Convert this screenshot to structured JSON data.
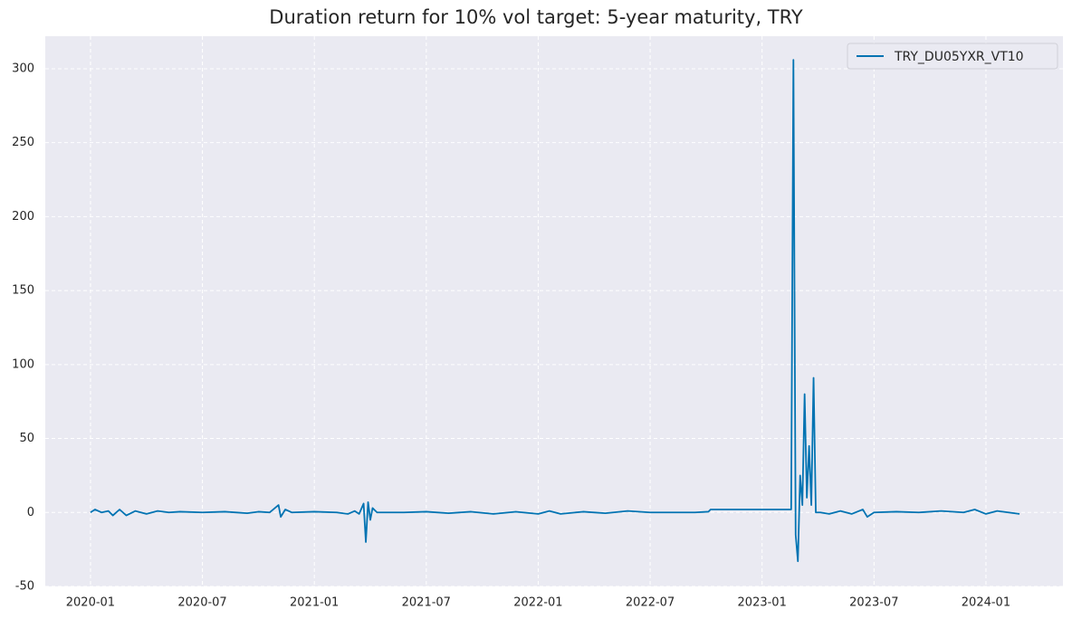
{
  "chart_data": {
    "type": "line",
    "title": "Duration return for 10% vol target: 5-year maturity, TRY",
    "x": [
      2020.0,
      2020.02,
      2020.05,
      2020.08,
      2020.1,
      2020.13,
      2020.16,
      2020.2,
      2020.25,
      2020.3,
      2020.35,
      2020.4,
      2020.5,
      2020.6,
      2020.7,
      2020.75,
      2020.8,
      2020.84,
      2020.85,
      2020.87,
      2020.9,
      2021.0,
      2021.1,
      2021.15,
      2021.18,
      2021.2,
      2021.22,
      2021.23,
      2021.24,
      2021.25,
      2021.26,
      2021.28,
      2021.4,
      2021.5,
      2021.6,
      2021.7,
      2021.8,
      2021.9,
      2022.0,
      2022.05,
      2022.1,
      2022.2,
      2022.3,
      2022.4,
      2022.5,
      2022.6,
      2022.7,
      2022.76,
      2022.77,
      2023.0,
      2023.13,
      2023.14,
      2023.15,
      2023.16,
      2023.17,
      2023.18,
      2023.19,
      2023.2,
      2023.21,
      2023.22,
      2023.23,
      2023.24,
      2023.26,
      2023.3,
      2023.35,
      2023.4,
      2023.45,
      2023.47,
      2023.5,
      2023.6,
      2023.7,
      2023.8,
      2023.9,
      2023.95,
      2024.0,
      2024.05,
      2024.1,
      2024.15
    ],
    "series": [
      {
        "name": "TRY_DU05YXR_VT10",
        "color": "#0173b2",
        "values": [
          0,
          2,
          0,
          1,
          -2,
          2,
          -2,
          1,
          -1,
          1,
          0,
          0.5,
          0,
          0.5,
          -0.5,
          0.5,
          0,
          5,
          -3,
          2,
          0,
          0.5,
          0,
          -1,
          1,
          -1,
          6,
          -20,
          7,
          -5,
          3,
          0,
          0,
          0.5,
          -0.5,
          0.5,
          -1,
          0.5,
          -1,
          1,
          -1,
          0.5,
          -0.5,
          1,
          0,
          0,
          0,
          0.5,
          2,
          2,
          2,
          306,
          -15,
          -33,
          25,
          5,
          80,
          10,
          45,
          5,
          91,
          0,
          0,
          -1,
          1,
          -1,
          2,
          -3,
          0,
          0.5,
          0,
          1,
          0,
          2,
          -1,
          1,
          0,
          -1
        ]
      }
    ],
    "xlim": [
      2019.798,
      2024.344
    ],
    "xticks": [
      {
        "value": 2020.0,
        "label": "2020-01"
      },
      {
        "value": 2020.5,
        "label": "2020-07"
      },
      {
        "value": 2021.0,
        "label": "2021-01"
      },
      {
        "value": 2021.5,
        "label": "2021-07"
      },
      {
        "value": 2022.0,
        "label": "2022-01"
      },
      {
        "value": 2022.5,
        "label": "2022-07"
      },
      {
        "value": 2023.0,
        "label": "2023-01"
      },
      {
        "value": 2023.5,
        "label": "2023-07"
      },
      {
        "value": 2024.0,
        "label": "2024-01"
      }
    ],
    "ylim": [
      -50,
      322
    ],
    "yticks": [
      -50,
      0,
      50,
      100,
      150,
      200,
      250,
      300
    ],
    "grid": true,
    "legend": "upper-right"
  }
}
